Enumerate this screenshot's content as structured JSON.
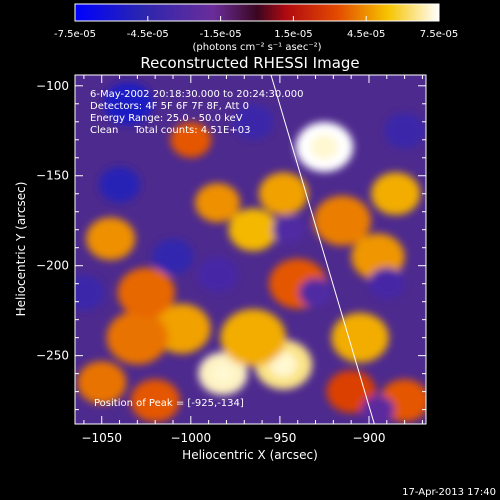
{
  "colorbar": {
    "tick_labels": [
      "-7.5e-05",
      "-4.5e-05",
      "-1.5e-05",
      "1.5e-05",
      "4.5e-05",
      "7.5e-05"
    ],
    "tick_values": [
      -7.5e-05,
      -4.5e-05,
      -1.5e-05,
      1.5e-05,
      4.5e-05,
      7.5e-05
    ],
    "range": [
      -7.5e-05,
      7.5e-05
    ],
    "units_label": "(photons cm⁻² s⁻¹ asec⁻²)",
    "colors": [
      "#0000ff",
      "#3a1f8c",
      "#6a2d9a",
      "#b00a10",
      "#e34a00",
      "#f6c400",
      "#ffffff"
    ]
  },
  "chart_data": {
    "type": "heatmap",
    "title": "Reconstructed RHESSI Image",
    "xlabel": "Heliocentric X (arcsec)",
    "ylabel": "Heliocentric Y (arcsec)",
    "xlim": [
      -1065,
      -868
    ],
    "ylim": [
      -288,
      -94
    ],
    "x_ticks": [
      -1050,
      -1000,
      -950,
      -900
    ],
    "x_tick_labels": [
      "−1050",
      "−1000",
      "−950",
      "−900"
    ],
    "y_ticks": [
      -100,
      -150,
      -200,
      -250
    ],
    "y_tick_labels": [
      "−100",
      "−150",
      "−200",
      "−250"
    ],
    "annotations": [
      "6-May-2002 20:18:30.000 to 20:24:30.000",
      "Detectors: 4F 5F 6F 7F 8F, Att 0",
      "Energy Range: 25.0 - 50.0 keV",
      "Clean     Total counts: 4.51E+03"
    ],
    "peak_label": "Position of Peak = [-925,-134]",
    "peak": [
      -925,
      -134
    ],
    "limb_line": [
      [
        -955,
        -94
      ],
      [
        -897,
        -288
      ]
    ],
    "blobs": [
      {
        "x": -925,
        "y": -134,
        "value": 7.5e-05,
        "r": 14
      },
      {
        "x": -982,
        "y": -260,
        "value": 7e-05,
        "r": 12
      },
      {
        "x": -948,
        "y": -255,
        "value": 6.5e-05,
        "r": 14
      },
      {
        "x": -965,
        "y": -240,
        "value": 5e-05,
        "r": 16
      },
      {
        "x": -1005,
        "y": -235,
        "value": 4.8e-05,
        "r": 14
      },
      {
        "x": -1030,
        "y": -240,
        "value": 4e-05,
        "r": 15
      },
      {
        "x": -1050,
        "y": -265,
        "value": 4e-05,
        "r": 12
      },
      {
        "x": -1020,
        "y": -275,
        "value": 3.5e-05,
        "r": 12
      },
      {
        "x": -1045,
        "y": -185,
        "value": 4.5e-05,
        "r": 12
      },
      {
        "x": -1025,
        "y": -215,
        "value": 3.8e-05,
        "r": 14
      },
      {
        "x": -985,
        "y": -165,
        "value": 4.5e-05,
        "r": 11
      },
      {
        "x": -965,
        "y": -180,
        "value": 5.2e-05,
        "r": 12
      },
      {
        "x": -948,
        "y": -160,
        "value": 4.8e-05,
        "r": 12
      },
      {
        "x": -940,
        "y": -210,
        "value": 3.5e-05,
        "r": 14
      },
      {
        "x": -915,
        "y": -175,
        "value": 4.2e-05,
        "r": 14
      },
      {
        "x": -885,
        "y": -160,
        "value": 5e-05,
        "r": 12
      },
      {
        "x": -895,
        "y": -195,
        "value": 4.6e-05,
        "r": 13
      },
      {
        "x": -905,
        "y": -240,
        "value": 5e-05,
        "r": 14
      },
      {
        "x": -880,
        "y": -275,
        "value": 3.5e-05,
        "r": 12
      },
      {
        "x": -910,
        "y": -270,
        "value": 3e-05,
        "r": 12
      },
      {
        "x": -1000,
        "y": -130,
        "value": 3.5e-05,
        "r": 10
      },
      {
        "x": -1040,
        "y": -155,
        "value": -5e-05,
        "r": 10
      },
      {
        "x": -1010,
        "y": -195,
        "value": -4.5e-05,
        "r": 10
      },
      {
        "x": -1035,
        "y": -110,
        "value": -5.5e-05,
        "r": 12
      },
      {
        "x": -1060,
        "y": -215,
        "value": -4e-05,
        "r": 10
      },
      {
        "x": -965,
        "y": -120,
        "value": -4e-05,
        "r": 10
      },
      {
        "x": -985,
        "y": -205,
        "value": -3.5e-05,
        "r": 10
      },
      {
        "x": -945,
        "y": -180,
        "value": -3e-05,
        "r": 8
      },
      {
        "x": -890,
        "y": -210,
        "value": -3.5e-05,
        "r": 9
      },
      {
        "x": -880,
        "y": -125,
        "value": -4e-05,
        "r": 10
      },
      {
        "x": -930,
        "y": -215,
        "value": -3e-05,
        "r": 8
      },
      {
        "x": -895,
        "y": -280,
        "value": -2.5e-05,
        "r": 8
      }
    ]
  },
  "timestamp": "17-Apr-2013 17:40"
}
